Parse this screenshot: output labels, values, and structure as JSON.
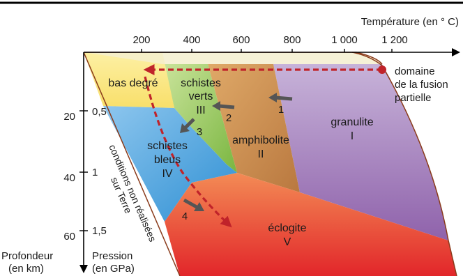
{
  "top_axis": {
    "title": "Température (en ° C)",
    "ticks": [
      "200",
      "400",
      "600",
      "800",
      "1 000",
      "1 200"
    ]
  },
  "left_axes": {
    "depth_title_line1": "Profondeur",
    "depth_title_line2": "(en km)",
    "pressure_title_line1": "Pression",
    "pressure_title_line2": "(en GPa)",
    "depth_ticks": [
      "20",
      "40",
      "60"
    ],
    "pressure_ticks": [
      "0,5",
      "1",
      "1,5"
    ]
  },
  "facies": {
    "bas_degre": "bas degré",
    "schistes_verts_1": "schistes",
    "schistes_verts_2": "verts",
    "schistes_verts_num": "III",
    "amphibolite": "amphibolite",
    "amphibolite_num": "II",
    "granulite": "granulite",
    "granulite_num": "I",
    "schistes_bleus_1": "schistes",
    "schistes_bleus_2": "bleus",
    "schistes_bleus_num": "IV",
    "eclogite": "éclogite",
    "eclogite_num": "V"
  },
  "transitions": [
    "1",
    "2",
    "3",
    "4"
  ],
  "legend": {
    "line1": "domaine",
    "line2": "de la fusion",
    "line3": "partielle"
  },
  "edge_note": {
    "line1": "conditions non réalisées",
    "line2": "sur Terre"
  },
  "colors": {
    "bas_degre": "#fbe98a",
    "schistes_verts": "#9fcc5a",
    "amphibolite": "#c98e4c",
    "granulite": "#a883c1",
    "schistes_bleus": "#54a6de",
    "eclogite": "#ea4a2f",
    "path": "#c0232a",
    "arrow": "#555555"
  }
}
